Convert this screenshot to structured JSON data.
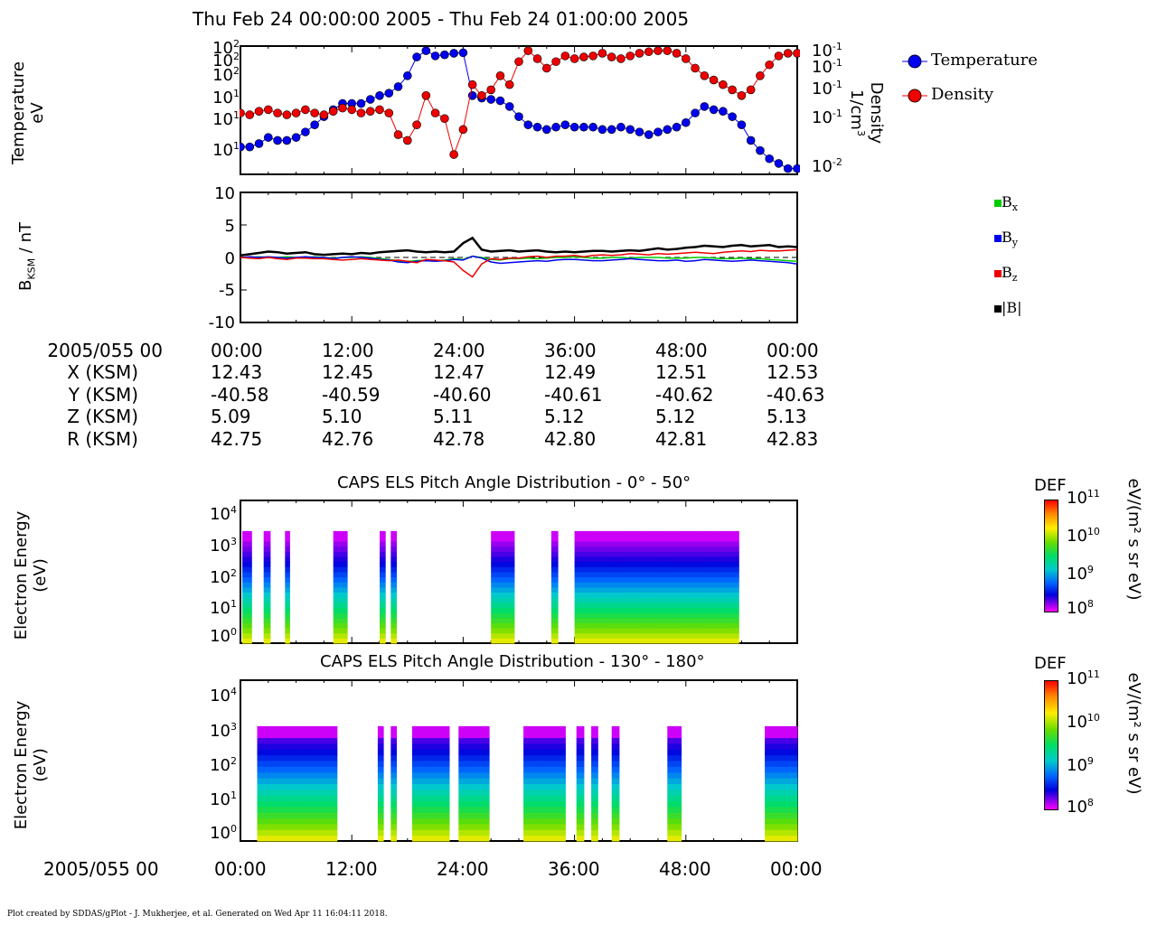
{
  "header": {
    "title": "Thu Feb 24 00:00:00 2005 - Thu Feb 24 01:00:00 2005"
  },
  "colors": {
    "temperature": "#0000ee",
    "density": "#ee0000",
    "bx": "#00cc00",
    "by": "#0000ee",
    "bz": "#ee0000",
    "bmag": "#000000"
  },
  "panel1": {
    "ylabel_line1": "Temperature",
    "ylabel_line2": "eV",
    "right_label_line1": "Density",
    "right_label_line2_base": "1/cm",
    "right_label_line2_exp": "3",
    "left_ticks": [
      {
        "base": "10",
        "exp": "2"
      },
      {
        "base": "10",
        "exp": "2"
      },
      {
        "base": "10",
        "exp": "2"
      },
      {
        "base": "10",
        "exp": "1"
      },
      {
        "base": "10",
        "exp": "1"
      },
      {
        "base": "10",
        "exp": "1"
      }
    ],
    "right_ticks": [
      {
        "base": "10",
        "exp": "-1"
      },
      {
        "base": "10",
        "exp": "-1"
      },
      {
        "base": "10",
        "exp": "-1"
      },
      {
        "base": "10",
        "exp": "-1"
      },
      {
        "base": "10",
        "exp": "-2"
      }
    ],
    "legend": {
      "temperature": "Temperature",
      "density": "Density"
    }
  },
  "panel2": {
    "ylabel_base": "B",
    "ylabel_sub": "KSM",
    "ylabel_rest": " / nT",
    "yticks": [
      "10",
      "5",
      "0",
      "-5",
      "-10"
    ],
    "legend": {
      "bx_base": "B",
      "bx_sub": "x",
      "by_base": "B",
      "by_sub": "y",
      "bz_base": "B",
      "bz_sub": "z",
      "bmag": "|B|"
    }
  },
  "ephemeris": {
    "rows": [
      {
        "label": "2005/055 00",
        "values": [
          "00:00",
          "12:00",
          "24:00",
          "36:00",
          "48:00",
          "00:00"
        ]
      },
      {
        "label": "X (KSM)",
        "values": [
          "12.43",
          "12.45",
          "12.47",
          "12.49",
          "12.51",
          "12.53"
        ]
      },
      {
        "label": "Y (KSM)",
        "values": [
          "-40.58",
          "-40.59",
          "-40.60",
          "-40.61",
          "-40.62",
          "-40.63"
        ]
      },
      {
        "label": "Z (KSM)",
        "values": [
          "5.09",
          "5.10",
          "5.11",
          "5.12",
          "5.12",
          "5.13"
        ]
      },
      {
        "label": "R (KSM)",
        "values": [
          "42.75",
          "42.76",
          "42.78",
          "42.80",
          "42.81",
          "42.83"
        ]
      }
    ]
  },
  "spec1": {
    "title": "CAPS ELS Pitch Angle Distribution - 0° - 50°",
    "ylabel_line1": "Electron Energy",
    "ylabel_line2": "(eV)",
    "yticks": [
      {
        "base": "10",
        "exp": "4"
      },
      {
        "base": "10",
        "exp": "3"
      },
      {
        "base": "10",
        "exp": "2"
      },
      {
        "base": "10",
        "exp": "1"
      },
      {
        "base": "10",
        "exp": "0"
      }
    ],
    "colorbar": {
      "title": "DEF",
      "ticks": [
        {
          "base": "10",
          "exp": "11"
        },
        {
          "base": "10",
          "exp": "10"
        },
        {
          "base": "10",
          "exp": "9"
        },
        {
          "base": "10",
          "exp": "8"
        }
      ],
      "unit": "eV/(m² s sr eV)"
    }
  },
  "spec2": {
    "title": "CAPS ELS Pitch Angle Distribution - 130° - 180°",
    "ylabel_line1": "Electron Energy",
    "ylabel_line2": "(eV)",
    "yticks": [
      {
        "base": "10",
        "exp": "4"
      },
      {
        "base": "10",
        "exp": "3"
      },
      {
        "base": "10",
        "exp": "2"
      },
      {
        "base": "10",
        "exp": "1"
      },
      {
        "base": "10",
        "exp": "0"
      }
    ],
    "colorbar": {
      "title": "DEF",
      "ticks": [
        {
          "base": "10",
          "exp": "11"
        },
        {
          "base": "10",
          "exp": "10"
        },
        {
          "base": "10",
          "exp": "9"
        },
        {
          "base": "10",
          "exp": "8"
        }
      ],
      "unit": "eV/(m² s sr eV)"
    }
  },
  "bottom_axis": {
    "label": "2005/055 00",
    "ticks": [
      "00:00",
      "12:00",
      "24:00",
      "36:00",
      "48:00",
      "00:00"
    ]
  },
  "footer": "Plot created by SDDAS/gPlot - J. Mukherjee, et al.  Generated on Wed Apr 11 16:04:11 2018.",
  "chart_data": [
    {
      "type": "line",
      "x_unit": "minutes after 2005/055 00:00",
      "x": [
        0,
        1,
        2,
        3,
        4,
        5,
        6,
        7,
        8,
        9,
        10,
        11,
        12,
        13,
        14,
        15,
        16,
        17,
        18,
        19,
        20,
        21,
        22,
        23,
        24,
        25,
        26,
        27,
        28,
        29,
        30,
        31,
        32,
        33,
        34,
        35,
        36,
        37,
        38,
        39,
        40,
        41,
        42,
        43,
        44,
        45,
        46,
        47,
        48,
        49,
        50,
        51,
        52,
        53,
        54,
        55,
        56,
        57,
        58,
        59,
        60
      ],
      "series": [
        {
          "name": "Temperature",
          "axis": "left",
          "values": [
            14,
            14,
            15,
            17,
            16,
            16,
            17,
            19,
            22,
            26,
            30,
            34,
            34,
            34,
            37,
            40,
            42,
            48,
            60,
            88,
            100,
            90,
            92,
            95,
            96,
            40,
            38,
            37,
            36,
            32,
            26,
            22,
            21,
            20,
            21,
            22,
            21,
            21,
            21,
            20,
            20,
            21,
            20,
            19,
            18,
            19,
            20,
            21,
            23,
            28,
            32,
            30,
            29,
            26,
            22,
            16,
            13,
            11,
            10,
            9,
            9
          ]
        },
        {
          "name": "Density",
          "axis": "right",
          "values": [
            0.028,
            0.027,
            0.029,
            0.03,
            0.028,
            0.027,
            0.028,
            0.03,
            0.028,
            0.027,
            0.029,
            0.031,
            0.03,
            0.028,
            0.029,
            0.03,
            0.028,
            0.018,
            0.016,
            0.022,
            0.04,
            0.028,
            0.025,
            0.012,
            0.02,
            0.05,
            0.04,
            0.045,
            0.06,
            0.05,
            0.08,
            0.1,
            0.085,
            0.07,
            0.08,
            0.09,
            0.085,
            0.088,
            0.09,
            0.095,
            0.088,
            0.085,
            0.09,
            0.095,
            0.098,
            0.1,
            0.1,
            0.095,
            0.085,
            0.07,
            0.06,
            0.055,
            0.05,
            0.045,
            0.04,
            0.045,
            0.06,
            0.075,
            0.09,
            0.095,
            0.095
          ]
        }
      ],
      "ylabel": "Temperature eV",
      "y2label": "Density 1/cm3",
      "y_scale": "log",
      "y2_scale": "log",
      "ylim": [
        8,
        110
      ],
      "y2lim": [
        0.008,
        0.11
      ],
      "legend_position": "right"
    },
    {
      "type": "line",
      "x_unit": "minutes after 2005/055 00:00",
      "x": [
        0,
        1,
        2,
        3,
        4,
        5,
        6,
        7,
        8,
        9,
        10,
        11,
        12,
        13,
        14,
        15,
        16,
        17,
        18,
        19,
        20,
        21,
        22,
        23,
        24,
        25,
        26,
        27,
        28,
        29,
        30,
        31,
        32,
        33,
        34,
        35,
        36,
        37,
        38,
        39,
        40,
        41,
        42,
        43,
        44,
        45,
        46,
        47,
        48,
        49,
        50,
        51,
        52,
        53,
        54,
        55,
        56,
        57,
        58,
        59,
        60
      ],
      "series": [
        {
          "name": "Bx",
          "values": [
            0,
            0,
            0.1,
            0,
            0,
            0.1,
            0,
            0,
            0.1,
            0,
            -0.1,
            0,
            0,
            0.1,
            0,
            -0.2,
            -0.3,
            -0.5,
            -0.6,
            -0.5,
            -0.4,
            -0.5,
            -0.4,
            -0.2,
            -0.3,
            0.2,
            0,
            -0.3,
            -0.4,
            -0.2,
            -0.2,
            -0.1,
            -0.2,
            -0.1,
            0,
            0,
            0.1,
            0,
            -0.1,
            -0.1,
            0,
            0,
            -0.1,
            0,
            0,
            0,
            -0.1,
            -0.1,
            -0.1,
            0,
            0,
            -0.1,
            -0.2,
            -0.2,
            -0.1,
            -0.2,
            -0.2,
            -0.3,
            -0.4,
            -0.5,
            -0.6
          ]
        },
        {
          "name": "By",
          "values": [
            0,
            0.1,
            0,
            0.1,
            0,
            -0.1,
            0,
            0.1,
            0,
            0,
            -0.2,
            0,
            0.1,
            0,
            -0.1,
            -0.3,
            -0.4,
            -0.7,
            -0.8,
            -0.6,
            -0.5,
            -0.6,
            -0.5,
            -0.3,
            -0.4,
            0.2,
            -0.1,
            -0.7,
            -0.9,
            -0.8,
            -0.7,
            -0.6,
            -0.5,
            -0.6,
            -0.4,
            -0.3,
            -0.3,
            -0.4,
            -0.5,
            -0.5,
            -0.4,
            -0.3,
            -0.2,
            -0.3,
            -0.4,
            -0.5,
            -0.5,
            -0.4,
            -0.6,
            -0.5,
            -0.3,
            -0.4,
            -0.5,
            -0.6,
            -0.5,
            -0.4,
            -0.5,
            -0.6,
            -0.7,
            -0.8,
            -1.0
          ]
        },
        {
          "name": "Bz",
          "values": [
            0,
            -0.1,
            -0.2,
            0,
            -0.2,
            -0.3,
            -0.1,
            -0.1,
            -0.2,
            -0.2,
            -0.3,
            -0.4,
            -0.3,
            -0.2,
            -0.3,
            -0.4,
            -0.5,
            -0.4,
            -0.6,
            -0.8,
            -0.3,
            -0.4,
            -0.5,
            -0.7,
            -2.0,
            -3.0,
            -1.0,
            -0.2,
            -0.3,
            -0.1,
            -0.1,
            0.1,
            0.2,
            0,
            0.2,
            0.2,
            0.3,
            0.1,
            0.3,
            0.4,
            0.3,
            0.4,
            0.6,
            0.5,
            0.4,
            0.6,
            0.5,
            0.6,
            0.7,
            0.8,
            0.7,
            0.6,
            0.8,
            0.9,
            1.0,
            0.9,
            1.1,
            1.0,
            1.0,
            1.1,
            1.2
          ]
        },
        {
          "name": "|B|",
          "values": [
            0.3,
            0.5,
            0.7,
            0.9,
            0.8,
            0.6,
            0.7,
            0.8,
            0.5,
            0.4,
            0.5,
            0.6,
            0.5,
            0.7,
            0.6,
            0.8,
            0.9,
            1.0,
            1.1,
            0.9,
            0.8,
            0.9,
            0.8,
            0.9,
            2.2,
            3.0,
            1.2,
            0.9,
            1.0,
            1.1,
            0.9,
            1.0,
            1.1,
            0.9,
            0.8,
            0.9,
            0.8,
            0.9,
            1.0,
            1.0,
            0.9,
            1.0,
            1.1,
            1.0,
            1.2,
            1.4,
            1.2,
            1.3,
            1.5,
            1.6,
            1.8,
            1.7,
            1.6,
            1.8,
            1.9,
            1.7,
            1.8,
            1.9,
            1.6,
            1.7,
            1.6
          ]
        }
      ],
      "ylabel": "B KSM / nT",
      "yticks": [
        10,
        5,
        0,
        -5,
        -10
      ],
      "ylim": [
        -10,
        10
      ],
      "legend_position": "right"
    },
    {
      "type": "heatmap",
      "title": "CAPS ELS Pitch Angle Distribution - 0° - 50°",
      "x_unit": "minutes after 2005/055 00:00",
      "y_scale": "log",
      "ylim": [
        1,
        20000
      ],
      "ylabel": "Electron Energy (eV)",
      "colorbar_label": "DEF eV/(m² s sr eV)",
      "color_range": [
        100000000.0,
        100000000000.0
      ],
      "active_intervals_min": [
        [
          0.2,
          1.2
        ],
        [
          2.5,
          3.2
        ],
        [
          4.8,
          5.3
        ],
        [
          10.0,
          11.5
        ],
        [
          15.0,
          15.6
        ],
        [
          16.2,
          16.8
        ],
        [
          27.0,
          29.5
        ],
        [
          33.5,
          34.2
        ],
        [
          36.0,
          53.7
        ]
      ]
    },
    {
      "type": "heatmap",
      "title": "CAPS ELS Pitch Angle Distribution - 130° - 180°",
      "x_unit": "minutes after 2005/055 00:00",
      "y_scale": "log",
      "ylim": [
        1,
        20000
      ],
      "ylabel": "Electron Energy (eV)",
      "colorbar_label": "DEF eV/(m² s sr eV)",
      "color_range": [
        100000000.0,
        100000000000.0
      ],
      "active_intervals_min": [
        [
          1.8,
          10.4
        ],
        [
          14.8,
          15.4
        ],
        [
          16.2,
          16.8
        ],
        [
          18.5,
          22.5
        ],
        [
          23.5,
          26.8
        ],
        [
          30.5,
          35.0
        ],
        [
          36.2,
          37.0
        ],
        [
          37.8,
          38.5
        ],
        [
          40.0,
          40.8
        ],
        [
          46.0,
          47.5
        ],
        [
          56.5,
          60.0
        ]
      ]
    }
  ]
}
